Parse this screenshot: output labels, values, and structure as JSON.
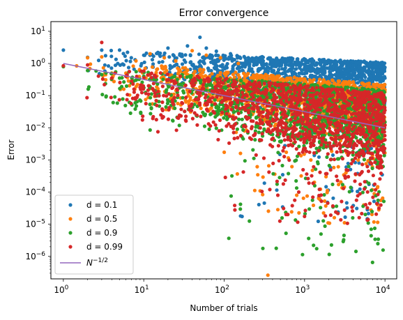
{
  "chart_data": {
    "type": "scatter",
    "title": "Error convergence",
    "xlabel": "Number of trials",
    "ylabel": "Error",
    "xscale": "log",
    "yscale": "log",
    "xlim": [
      0.7,
      14000
    ],
    "ylim": [
      2e-07,
      20
    ],
    "x_ticks": [
      {
        "value": 1,
        "base": "10",
        "exp": "0"
      },
      {
        "value": 10,
        "base": "10",
        "exp": "1"
      },
      {
        "value": 100,
        "base": "10",
        "exp": "2"
      },
      {
        "value": 1000,
        "base": "10",
        "exp": "3"
      },
      {
        "value": 10000,
        "base": "10",
        "exp": "4"
      }
    ],
    "y_ticks": [
      {
        "value": 1e-06,
        "base": "10",
        "exp": "−6"
      },
      {
        "value": 1e-05,
        "base": "10",
        "exp": "−5"
      },
      {
        "value": 0.0001,
        "base": "10",
        "exp": "−4"
      },
      {
        "value": 0.001,
        "base": "10",
        "exp": "−3"
      },
      {
        "value": 0.01,
        "base": "10",
        "exp": "−2"
      },
      {
        "value": 0.1,
        "base": "10",
        "exp": "−1"
      },
      {
        "value": 1,
        "base": "10",
        "exp": "0"
      },
      {
        "value": 10,
        "base": "10",
        "exp": "1"
      }
    ],
    "grid": false,
    "legend_position": "lower-left",
    "series": [
      {
        "name": "d = 0.1",
        "color": "#1f77b4",
        "points": [
          [
            1,
            2.6
          ],
          [
            2,
            1.55
          ],
          [
            3,
            2.6
          ],
          [
            5,
            2.6
          ],
          [
            7,
            1.5
          ],
          [
            10,
            1.8
          ],
          [
            15,
            2.2
          ],
          [
            20,
            3.0
          ],
          [
            28,
            1.8
          ],
          [
            35,
            3.5
          ],
          [
            50,
            6.5
          ],
          [
            60,
            3.0
          ],
          [
            80,
            2.4
          ],
          [
            120,
            2.0
          ],
          [
            200,
            1.5
          ],
          [
            400,
            1.2
          ],
          [
            1000,
            0.9
          ],
          [
            2000,
            0.7
          ],
          [
            4000,
            0.55
          ],
          [
            8000,
            0.42
          ],
          [
            10000,
            0.35
          ]
        ],
        "spread": {
          "kind": "band",
          "upper_at_1": 3.0,
          "upper_at_max": 1.1,
          "lower_at_1": 0.5,
          "lower_at_max": 0.05,
          "tail_min": 1e-05
        }
      },
      {
        "name": "d = 0.5",
        "color": "#ff7f0e",
        "points": [
          [
            1,
            0.8
          ],
          [
            2,
            1.5
          ],
          [
            3,
            1.6
          ],
          [
            4,
            0.5
          ],
          [
            6,
            0.5
          ],
          [
            8,
            1.2
          ],
          [
            12,
            2.0
          ],
          [
            18,
            1.5
          ],
          [
            25,
            1.2
          ],
          [
            40,
            2.5
          ],
          [
            60,
            1.8
          ],
          [
            90,
            1.5
          ],
          [
            150,
            1.0
          ],
          [
            350,
            2.6e-07
          ],
          [
            600,
            0.3
          ],
          [
            1500,
            0.25
          ],
          [
            3000,
            0.2
          ],
          [
            6000,
            0.18
          ],
          [
            10000,
            0.15
          ]
        ],
        "spread": {
          "kind": "band",
          "upper_at_1": 1.5,
          "upper_at_max": 0.22,
          "lower_at_1": 0.1,
          "lower_at_max": 0.003,
          "tail_min": 1e-05
        }
      },
      {
        "name": "d = 0.9",
        "color": "#2ca02c",
        "points": [
          [
            1,
            0.8
          ],
          [
            2,
            0.6
          ],
          [
            3,
            0.45
          ],
          [
            5,
            0.35
          ],
          [
            7,
            0.25
          ],
          [
            10,
            0.4
          ],
          [
            12,
            0.0085
          ],
          [
            20,
            0.3
          ],
          [
            30,
            0.4
          ],
          [
            60,
            0.2
          ],
          [
            100,
            0.1
          ],
          [
            200,
            0.05
          ],
          [
            400,
            0.05
          ],
          [
            1000,
            0.03
          ],
          [
            3000,
            0.02
          ],
          [
            7000,
            6.5e-07
          ],
          [
            10000,
            0.015
          ]
        ],
        "spread": {
          "kind": "band",
          "upper_at_1": 0.9,
          "upper_at_max": 0.15,
          "lower_at_1": 0.05,
          "lower_at_max": 0.0006,
          "tail_min": 1e-06
        }
      },
      {
        "name": "d = 0.99",
        "color": "#d62728",
        "points": [
          [
            1,
            0.85
          ],
          [
            2,
            0.9
          ],
          [
            3,
            4.5
          ],
          [
            4,
            0.35
          ],
          [
            6,
            0.4
          ],
          [
            9,
            0.18
          ],
          [
            15,
            0.0075
          ],
          [
            25,
            0.25
          ],
          [
            40,
            0.3
          ],
          [
            80,
            0.15
          ],
          [
            120,
            0.08
          ],
          [
            200,
            0.05
          ],
          [
            370,
            0.00012
          ],
          [
            500,
            0.04
          ],
          [
            1000,
            0.03
          ],
          [
            3000,
            0.02
          ],
          [
            10000,
            0.012
          ]
        ],
        "spread": {
          "kind": "band",
          "upper_at_1": 1.0,
          "upper_at_max": 0.12,
          "lower_at_1": 0.05,
          "lower_at_max": 0.0003,
          "tail_min": 1e-05
        }
      }
    ],
    "reference_line": {
      "name": "N",
      "sup": "−1/2",
      "color": "#9467bd",
      "points": [
        [
          1,
          1.0
        ],
        [
          10000,
          0.01
        ]
      ]
    }
  }
}
